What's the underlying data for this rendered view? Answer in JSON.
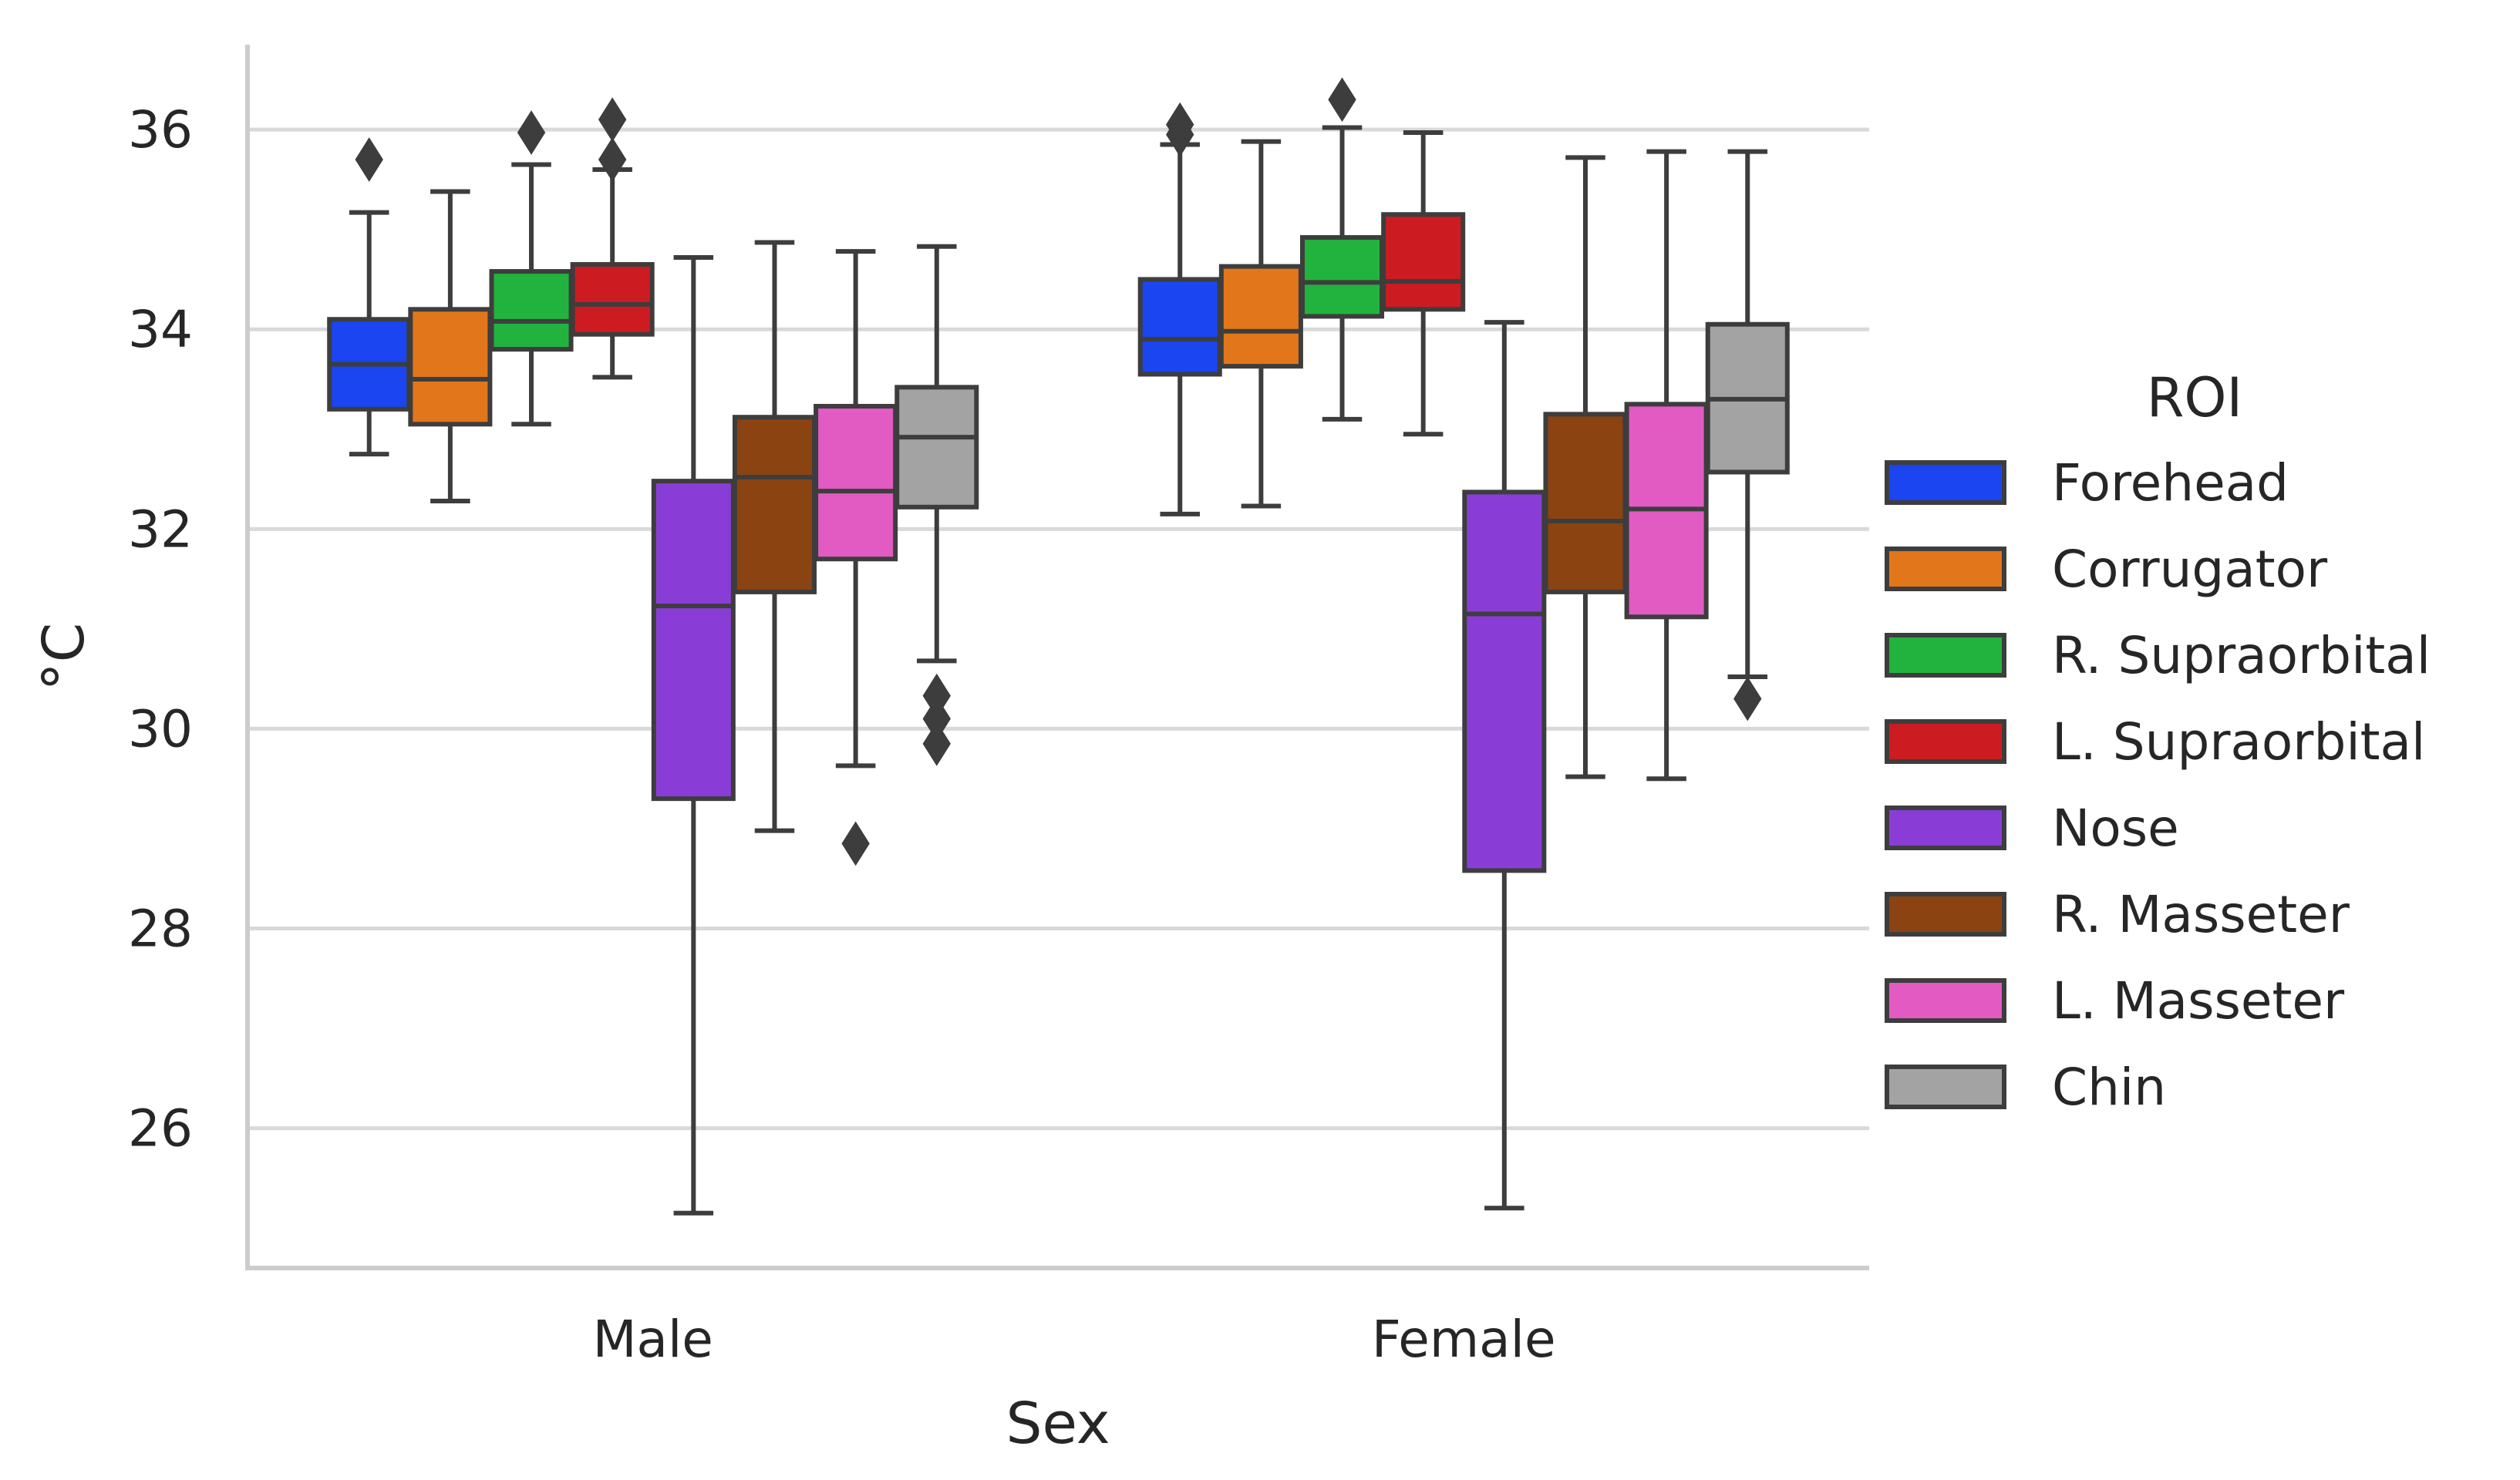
{
  "chart_data": {
    "type": "box",
    "title": "",
    "xlabel": "Sex",
    "ylabel": "°C",
    "ylim": [
      24.6,
      36.85
    ],
    "yticks": [
      26,
      28,
      30,
      32,
      34,
      36
    ],
    "ytick_labels": [
      "26",
      "28",
      "30",
      "32",
      "34",
      "36"
    ],
    "grid": "horizontal",
    "categories": [
      "Male",
      "Female"
    ],
    "legend": {
      "title": "ROI",
      "position": "right"
    },
    "series": [
      {
        "name": "Forehead",
        "color": "#1a45f0",
        "boxes": [
          {
            "whislo": 32.75,
            "q1": 33.2,
            "med": 33.65,
            "q3": 34.1,
            "whishi": 35.17,
            "fliers": [
              35.7
            ]
          },
          {
            "whislo": 32.15,
            "q1": 33.55,
            "med": 33.9,
            "q3": 34.5,
            "whishi": 35.85,
            "fliers": [
              35.95,
              36.05
            ]
          }
        ]
      },
      {
        "name": "Corrugator",
        "color": "#e2761b",
        "boxes": [
          {
            "whislo": 32.28,
            "q1": 33.05,
            "med": 33.5,
            "q3": 34.2,
            "whishi": 35.38,
            "fliers": []
          },
          {
            "whislo": 32.23,
            "q1": 33.63,
            "med": 33.98,
            "q3": 34.63,
            "whishi": 35.88,
            "fliers": []
          }
        ]
      },
      {
        "name": "R. Supraorbital",
        "color": "#22b33e",
        "boxes": [
          {
            "whislo": 33.05,
            "q1": 33.8,
            "med": 34.08,
            "q3": 34.58,
            "whishi": 35.65,
            "fliers": [
              35.97
            ]
          },
          {
            "whislo": 33.1,
            "q1": 34.13,
            "med": 34.47,
            "q3": 34.92,
            "whishi": 36.02,
            "fliers": [
              36.3
            ]
          }
        ]
      },
      {
        "name": "L. Supraorbital",
        "color": "#cc1c22",
        "boxes": [
          {
            "whislo": 33.52,
            "q1": 33.95,
            "med": 34.25,
            "q3": 34.65,
            "whishi": 35.6,
            "fliers": [
              35.7,
              36.1
            ]
          },
          {
            "whislo": 32.95,
            "q1": 34.2,
            "med": 34.48,
            "q3": 35.15,
            "whishi": 35.97,
            "fliers": []
          }
        ]
      },
      {
        "name": "Nose",
        "color": "#8a3dd6",
        "boxes": [
          {
            "whislo": 25.15,
            "q1": 29.3,
            "med": 31.23,
            "q3": 32.48,
            "whishi": 34.72,
            "fliers": []
          },
          {
            "whislo": 25.2,
            "q1": 28.58,
            "med": 31.15,
            "q3": 32.37,
            "whishi": 34.07,
            "fliers": []
          }
        ]
      },
      {
        "name": "R. Masseter",
        "color": "#8b4312",
        "boxes": [
          {
            "whislo": 28.98,
            "q1": 31.37,
            "med": 32.52,
            "q3": 33.12,
            "whishi": 34.87,
            "fliers": []
          },
          {
            "whislo": 29.52,
            "q1": 31.37,
            "med": 32.08,
            "q3": 33.15,
            "whishi": 35.72,
            "fliers": []
          }
        ]
      },
      {
        "name": "L. Masseter",
        "color": "#e15bc3",
        "boxes": [
          {
            "whislo": 29.63,
            "q1": 31.7,
            "med": 32.38,
            "q3": 33.23,
            "whishi": 34.78,
            "fliers": [
              28.85
            ]
          },
          {
            "whislo": 29.5,
            "q1": 31.12,
            "med": 32.2,
            "q3": 33.25,
            "whishi": 35.78,
            "fliers": []
          }
        ]
      },
      {
        "name": "Chin",
        "color": "#a3a3a3",
        "boxes": [
          {
            "whislo": 30.68,
            "q1": 32.22,
            "med": 32.92,
            "q3": 33.42,
            "whishi": 34.83,
            "fliers": [
              29.85,
              30.1,
              30.33
            ]
          },
          {
            "whislo": 30.52,
            "q1": 32.57,
            "med": 33.3,
            "q3": 34.05,
            "whishi": 35.78,
            "fliers": [
              30.3
            ]
          }
        ]
      }
    ]
  }
}
